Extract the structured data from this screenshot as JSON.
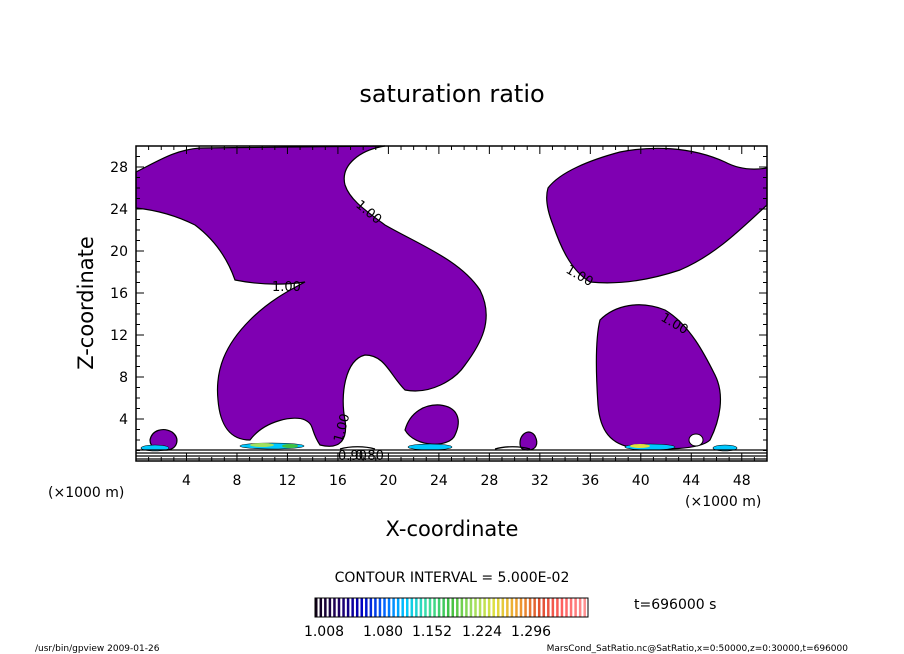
{
  "chart_data": {
    "type": "heatmap",
    "title": "saturation ratio",
    "xlabel": "X-coordinate",
    "ylabel": "Z-coordinate",
    "x_unit": "(×1000 m)",
    "z_unit": "(×1000 m)",
    "xlim": [
      0,
      50
    ],
    "ylim": [
      0,
      30
    ],
    "x_ticks": [
      4,
      8,
      12,
      16,
      20,
      24,
      28,
      32,
      36,
      40,
      44,
      48
    ],
    "y_ticks": [
      4,
      8,
      12,
      16,
      20,
      24,
      28
    ],
    "contour_interval": "CONTOUR INTERVAL = 5.000E-02",
    "contour_labels": [
      "1.00",
      "1.00",
      "1.00",
      "1.00",
      "1.00",
      "0.90",
      "0.80"
    ],
    "colorbar_ticks": [
      "1.008",
      "1.080",
      "1.152",
      "1.224",
      "1.296"
    ],
    "time_label": "t=696000 s",
    "shaded_region_color": "#7f00b2",
    "colorbar_colors": [
      "#100018",
      "#200060",
      "#0000c0",
      "#0060ff",
      "#00c8ff",
      "#40e0a0",
      "#40c040",
      "#a0e060",
      "#e0e040",
      "#f0a030",
      "#e05030",
      "#ff6060",
      "#ff9090"
    ]
  },
  "footer": {
    "left": "/usr/bin/gpview   2009-01-26",
    "right": "MarsCond_SatRatio.nc@SatRatio,x=0:50000,z=0:30000,t=696000"
  }
}
